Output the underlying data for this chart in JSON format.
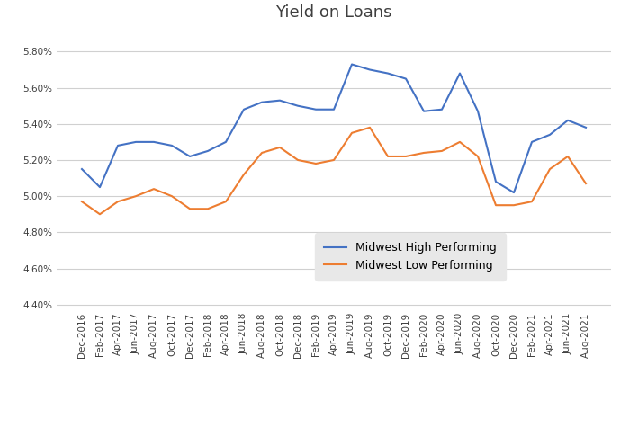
{
  "title": "Yield on Loans",
  "labels": [
    "Dec-2016",
    "Feb-2017",
    "Apr-2017",
    "Jun-2017",
    "Aug-2017",
    "Oct-2017",
    "Dec-2017",
    "Feb-2018",
    "Apr-2018",
    "Jun-2018",
    "Aug-2018",
    "Oct-2018",
    "Dec-2018",
    "Feb-2019",
    "Apr-2019",
    "Jun-2019",
    "Aug-2019",
    "Oct-2019",
    "Dec-2019",
    "Feb-2020",
    "Apr-2020",
    "Jun-2020",
    "Aug-2020",
    "Oct-2020",
    "Dec-2020",
    "Feb-2021",
    "Apr-2021",
    "Jun-2021",
    "Aug-2021"
  ],
  "high_performing": [
    5.15,
    5.05,
    5.28,
    5.3,
    5.3,
    5.28,
    5.22,
    5.25,
    5.3,
    5.48,
    5.52,
    5.53,
    5.5,
    5.48,
    5.48,
    5.73,
    5.7,
    5.68,
    5.65,
    5.47,
    5.48,
    5.68,
    5.47,
    5.08,
    5.02,
    5.3,
    5.34,
    5.42,
    5.38
  ],
  "low_performing": [
    4.97,
    4.9,
    4.97,
    5.0,
    5.04,
    5.0,
    4.93,
    4.93,
    4.97,
    5.12,
    5.24,
    5.27,
    5.2,
    5.18,
    5.2,
    5.35,
    5.38,
    5.22,
    5.22,
    5.24,
    5.25,
    5.3,
    5.22,
    4.95,
    4.95,
    4.97,
    5.15,
    5.22,
    5.07
  ],
  "high_color": "#4472C4",
  "low_color": "#ED7D31",
  "bg_color": "#FFFFFF",
  "plot_bg_color": "#FFFFFF",
  "grid_color": "#D0D0D0",
  "yticks": [
    4.4,
    4.6,
    4.8,
    5.0,
    5.2,
    5.4,
    5.6,
    5.8
  ],
  "ylim_min": 4.38,
  "ylim_max": 5.92,
  "legend_bg": "#E8E8E8",
  "title_fontsize": 13,
  "tick_fontsize": 7.5,
  "legend_fontsize": 9
}
